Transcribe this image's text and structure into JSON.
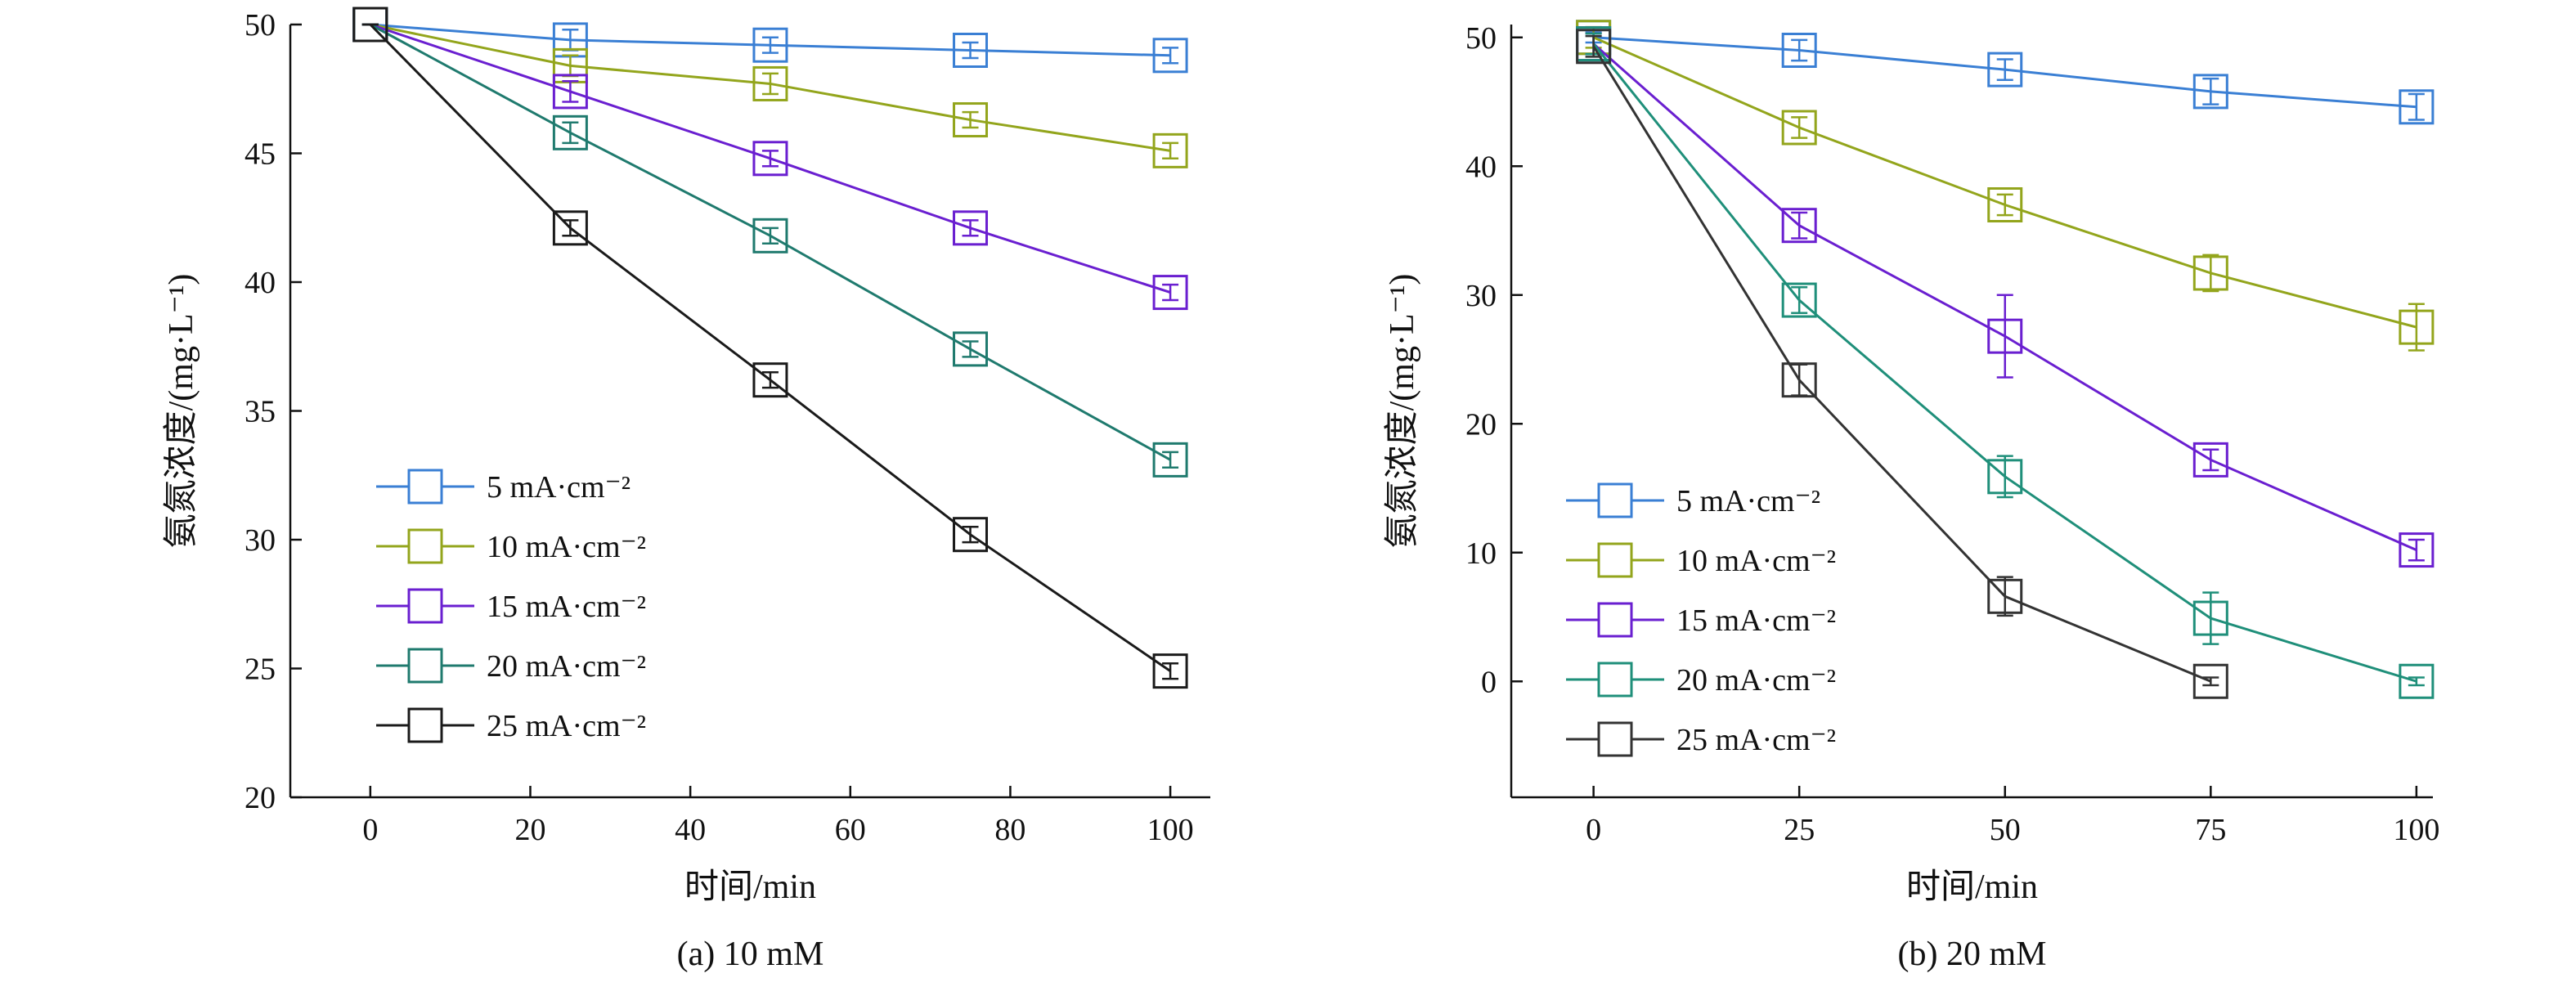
{
  "chart_data": [
    {
      "type": "line",
      "caption": "(a) 10 mM",
      "xlabel": "时间/min",
      "ylabel": "氨氮浓度/(mg·L⁻¹)",
      "xlim": [
        -10,
        105
      ],
      "ylim": [
        20,
        50
      ],
      "xticks": [
        0,
        20,
        40,
        60,
        80,
        100
      ],
      "yticks": [
        20,
        25,
        30,
        35,
        40,
        45,
        50
      ],
      "legend_position": "lower-left",
      "x": [
        0,
        25,
        50,
        75,
        100
      ],
      "series": [
        {
          "name": "5 mA·cm⁻²",
          "color": "#3a7fd4",
          "values": [
            50,
            49.4,
            49.2,
            49.0,
            48.8
          ],
          "errors": [
            0,
            0.4,
            0.3,
            0.3,
            0.3
          ]
        },
        {
          "name": "10 mA·cm⁻²",
          "color": "#93a51c",
          "values": [
            50,
            48.4,
            47.7,
            46.3,
            45.1
          ],
          "errors": [
            0,
            0.4,
            0.4,
            0.3,
            0.3
          ]
        },
        {
          "name": "15 mA·cm⁻²",
          "color": "#6a1fd0",
          "values": [
            50,
            47.4,
            44.8,
            42.1,
            39.6
          ],
          "errors": [
            0,
            0.4,
            0.3,
            0.3,
            0.3
          ]
        },
        {
          "name": "20 mA·cm⁻²",
          "color": "#1f7a6e",
          "values": [
            50,
            45.8,
            41.8,
            37.4,
            33.1
          ],
          "errors": [
            0,
            0.4,
            0.3,
            0.3,
            0.3
          ]
        },
        {
          "name": "25 mA·cm⁻²",
          "color": "#1a1a1a",
          "values": [
            50,
            42.1,
            36.2,
            30.2,
            24.9
          ],
          "errors": [
            0,
            0.3,
            0.3,
            0.3,
            0.3
          ]
        }
      ]
    },
    {
      "type": "line",
      "caption": "(b) 20 mM",
      "xlabel": "时间/min",
      "ylabel": "氨氮浓度/(mg·L⁻¹)",
      "xlim": [
        -10,
        102
      ],
      "ylim": [
        -9,
        51
      ],
      "xticks": [
        0,
        25,
        50,
        75,
        100
      ],
      "yticks": [
        0,
        10,
        20,
        30,
        40,
        50
      ],
      "legend_position": "lower-left",
      "series": [
        {
          "name": "5 mA·cm⁻²",
          "color": "#3a7fd4",
          "x": [
            0,
            25,
            50,
            75,
            100
          ],
          "values": [
            50,
            49,
            47.5,
            45.8,
            44.6
          ],
          "errors": [
            0.4,
            0.8,
            0.8,
            1.0,
            1.0
          ]
        },
        {
          "name": "10 mA·cm⁻²",
          "color": "#93a51c",
          "x": [
            0,
            25,
            50,
            75,
            100
          ],
          "values": [
            50,
            43,
            37,
            31.7,
            27.5
          ],
          "errors": [
            0.8,
            0.8,
            0.8,
            1.4,
            1.8
          ]
        },
        {
          "name": "15 mA·cm⁻²",
          "color": "#6a1fd0",
          "x": [
            0,
            25,
            50,
            75,
            100
          ],
          "values": [
            49.5,
            35.4,
            26.8,
            17.2,
            10.2
          ],
          "errors": [
            0.8,
            1.0,
            3.2,
            0.8,
            0.8
          ]
        },
        {
          "name": "20 mA·cm⁻²",
          "color": "#1f8f7a",
          "x": [
            0,
            25,
            50,
            75,
            100
          ],
          "values": [
            49.5,
            29.6,
            15.9,
            4.9,
            0
          ],
          "errors": [
            0.8,
            1.0,
            1.6,
            2.0,
            0.3
          ]
        },
        {
          "name": "25 mA·cm⁻²",
          "color": "#333333",
          "x": [
            0,
            25,
            50,
            75
          ],
          "values": [
            49.3,
            23.4,
            6.6,
            0
          ],
          "errors": [
            0.8,
            1.2,
            1.5,
            0.3
          ]
        }
      ]
    }
  ]
}
